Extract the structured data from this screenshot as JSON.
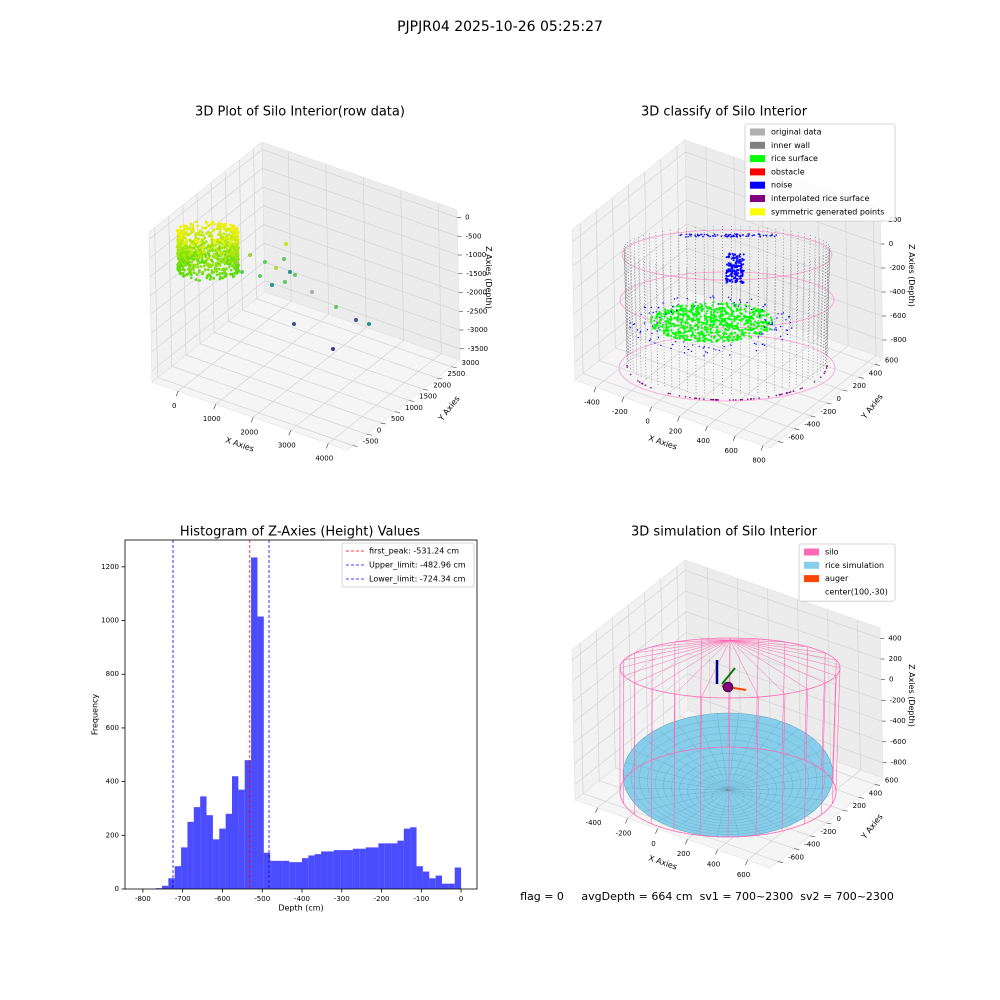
{
  "title": "PJPJR04 2025-10-26 05:25:27",
  "chart_data": [
    {
      "type": "scatter3d",
      "title": "3D Plot of Silo Interior(row data)",
      "xlabel": "X Axies",
      "ylabel": "Y Axies",
      "zlabel": "Z Axies (Depth)",
      "xlim": [
        -700,
        4500
      ],
      "xticks": [
        0,
        1000,
        2000,
        3000,
        4000
      ],
      "ylim": [
        -700,
        3300
      ],
      "yticks": [
        -500,
        0,
        500,
        1000,
        1500,
        2000,
        2500,
        3000
      ],
      "zlim": [
        -3800,
        200
      ],
      "zticks": [
        -3500,
        -3000,
        -2500,
        -2000,
        -1500,
        -1000,
        -500,
        0
      ]
    },
    {
      "type": "scatter3d",
      "title": "3D classify of Silo Interior",
      "xlabel": "X Axies",
      "ylabel": "Y Axies",
      "zlabel": "Z Axies (Depth)",
      "xlim": [
        -550,
        850
      ],
      "xticks": [
        -400,
        -200,
        0,
        200,
        400,
        600,
        800
      ],
      "ylim": [
        -700,
        700
      ],
      "yticks": [
        -600,
        -400,
        -200,
        0,
        200,
        400,
        600
      ],
      "zlim": [
        -950,
        300
      ],
      "zticks": [
        -800,
        -600,
        -400,
        -200,
        0,
        200
      ],
      "legend": [
        {
          "name": "original data",
          "color": "#b0b0b0"
        },
        {
          "name": "inner wall",
          "color": "#808080"
        },
        {
          "name": "rice surface",
          "color": "#00ff00"
        },
        {
          "name": "obstacle",
          "color": "#ff0000"
        },
        {
          "name": "noise",
          "color": "#0000ff"
        },
        {
          "name": "interpolated rice surface",
          "color": "#800080"
        },
        {
          "name": "symmetric generated points",
          "color": "#ffff00"
        }
      ]
    },
    {
      "type": "histogram",
      "title": "Histogram of Z-Axies (Height) Values",
      "xlabel": "Depth (cm)",
      "ylabel": "Frequency",
      "color": "#0000ff",
      "alpha": 0.7,
      "bins": [
        -768,
        -752,
        -736,
        -720,
        -704,
        -688,
        -672,
        -656,
        -640,
        -624,
        -608,
        -592,
        -576,
        -560,
        -544,
        -528,
        -512,
        -496,
        -480,
        -464,
        -448,
        -432,
        -416,
        -400,
        -384,
        -368,
        -352,
        -336,
        -320,
        -304,
        -288,
        -272,
        -256,
        -240,
        -224,
        -208,
        -192,
        -176,
        -160,
        -144,
        -128,
        -112,
        -96,
        -80,
        -64,
        -48,
        -32,
        -16,
        0
      ],
      "values": [
        3,
        12,
        40,
        85,
        155,
        250,
        305,
        345,
        275,
        185,
        225,
        280,
        420,
        370,
        480,
        1235,
        1015,
        135,
        105,
        105,
        105,
        100,
        100,
        115,
        125,
        130,
        140,
        140,
        145,
        145,
        145,
        150,
        150,
        155,
        155,
        170,
        170,
        170,
        180,
        225,
        230,
        85,
        65,
        40,
        50,
        20,
        20,
        80
      ],
      "xlim": [
        -845,
        40
      ],
      "xticks": [
        -800,
        -700,
        -600,
        -500,
        -400,
        -300,
        -200,
        -100,
        0
      ],
      "ylim": [
        0,
        1300
      ],
      "yticks": [
        0,
        200,
        400,
        600,
        800,
        1000,
        1200
      ],
      "vlines": [
        {
          "label": "first_peak: -531.24 cm",
          "value": -531.24,
          "color": "#ff0000"
        },
        {
          "label": "Upper_limit: -482.96 cm",
          "value": -482.96,
          "color": "#0000ff"
        },
        {
          "label": "Lower_limit: -724.34 cm",
          "value": -724.34,
          "color": "#0000ff"
        }
      ]
    },
    {
      "type": "surface3d",
      "title": "3D simulation of Silo Interior",
      "xlabel": "X Axies",
      "ylabel": "Y Axies",
      "zlabel": "Z Axies (Depth)",
      "xlim": [
        -550,
        750
      ],
      "xticks": [
        -400,
        -200,
        0,
        200,
        400,
        600
      ],
      "ylim": [
        -700,
        700
      ],
      "yticks": [
        -600,
        -400,
        -200,
        0,
        200,
        400,
        600
      ],
      "zlim": [
        -950,
        500
      ],
      "zticks": [
        -800,
        -600,
        -400,
        -200,
        0,
        200,
        400
      ],
      "legend": [
        {
          "name": "silo",
          "color": "#ff69b4"
        },
        {
          "name": "rice simulation",
          "color": "#87ceeb"
        },
        {
          "name": "auger",
          "color": "#ff4500"
        },
        {
          "name": "center(100,-30)",
          "color": "#ffffff"
        }
      ],
      "annotation": "flag = 0     avgDepth = 664 cm  sv1 = 700~2300  sv2 = 700~2300"
    }
  ]
}
